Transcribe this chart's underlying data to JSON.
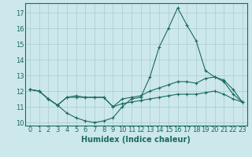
{
  "xlabel": "Humidex (Indice chaleur)",
  "ylabel": "",
  "xlim": [
    -0.5,
    23.5
  ],
  "ylim": [
    9.8,
    17.6
  ],
  "x": [
    0,
    1,
    2,
    3,
    4,
    5,
    6,
    7,
    8,
    9,
    10,
    11,
    12,
    13,
    14,
    15,
    16,
    17,
    18,
    19,
    20,
    21,
    22,
    23
  ],
  "line1": [
    12.1,
    12.0,
    11.5,
    11.1,
    10.6,
    10.3,
    10.1,
    10.0,
    10.1,
    10.3,
    11.0,
    11.5,
    11.6,
    12.9,
    14.8,
    16.0,
    17.3,
    16.2,
    15.2,
    13.3,
    12.9,
    12.6,
    11.8,
    11.3
  ],
  "line2": [
    12.1,
    12.0,
    11.5,
    11.1,
    11.6,
    11.6,
    11.6,
    11.6,
    11.6,
    11.0,
    11.5,
    11.6,
    11.7,
    12.0,
    12.2,
    12.4,
    12.6,
    12.6,
    12.5,
    12.8,
    12.9,
    12.7,
    12.1,
    11.3
  ],
  "line3": [
    12.1,
    12.0,
    11.5,
    11.1,
    11.6,
    11.7,
    11.6,
    11.6,
    11.6,
    11.0,
    11.2,
    11.3,
    11.4,
    11.5,
    11.6,
    11.7,
    11.8,
    11.8,
    11.8,
    11.9,
    12.0,
    11.8,
    11.5,
    11.3
  ],
  "line_color": "#1a6b5a",
  "bg_color": "#cce8ec",
  "grid_color": "#aacccc",
  "tick_label_fontsize": 6,
  "xlabel_fontsize": 7,
  "xticks": [
    0,
    1,
    2,
    3,
    4,
    5,
    6,
    7,
    8,
    9,
    10,
    11,
    12,
    13,
    14,
    15,
    16,
    17,
    18,
    19,
    20,
    21,
    22,
    23
  ],
  "yticks": [
    10,
    11,
    12,
    13,
    14,
    15,
    16,
    17
  ]
}
